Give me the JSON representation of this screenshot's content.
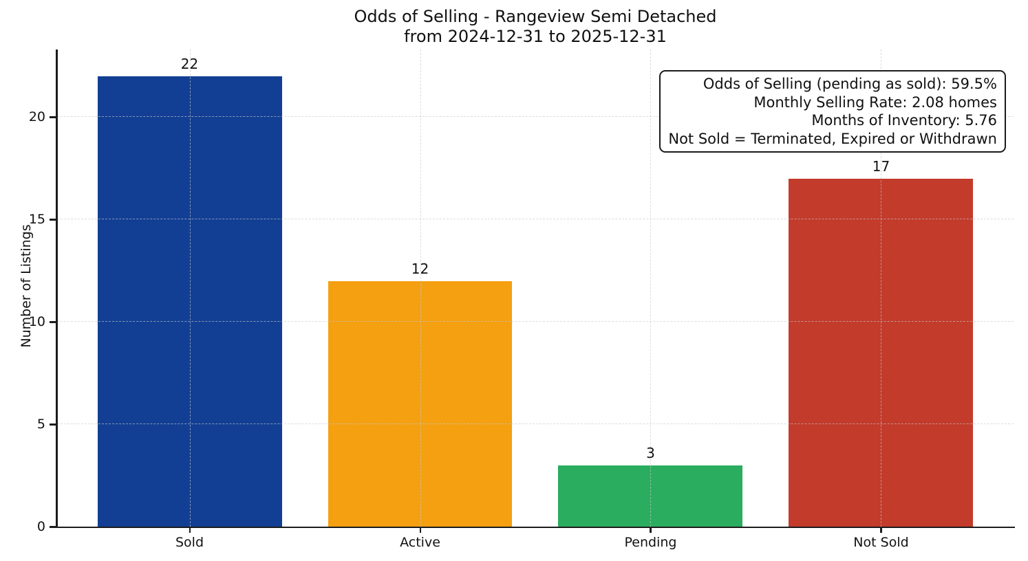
{
  "chart_data": {
    "type": "bar",
    "title": "Odds of Selling - Rangeview Semi Detached",
    "subtitle": "from 2024-12-31 to 2025-12-31",
    "ylabel": "Number of Listings",
    "xlabel": "",
    "categories": [
      "Sold",
      "Active",
      "Pending",
      "Not Sold"
    ],
    "values": [
      22,
      12,
      3,
      17
    ],
    "value_labels": [
      "22",
      "12",
      "3",
      "17"
    ],
    "bar_colors": [
      "#123f94",
      "#f4a011",
      "#2aad5e",
      "#c23b2b"
    ],
    "yticks": [
      0,
      5,
      10,
      15,
      20
    ],
    "ylim": [
      0,
      23.3
    ],
    "bar_width_fraction": 0.8,
    "grid": "dashed light-gray, horizontal at yticks and vertical at category centers, drawn above bars",
    "legend_position": "none",
    "annotation_box": {
      "position": "top-right",
      "text_align": "right",
      "lines": [
        "Odds of Selling (pending as sold): 59.5%",
        "Monthly Selling Rate: 2.08 homes",
        "Months of Inventory: 5.76",
        "Not Sold = Terminated, Expired or Withdrawn"
      ]
    }
  },
  "colors": {
    "background": "#ffffff",
    "spine": "#1c1c1c",
    "gridline": "#c8c8c8",
    "text": "#111111",
    "bar_sold": "#123f94",
    "bar_active": "#f4a011",
    "bar_pending": "#2aad5e",
    "bar_not_sold": "#c23b2b"
  }
}
